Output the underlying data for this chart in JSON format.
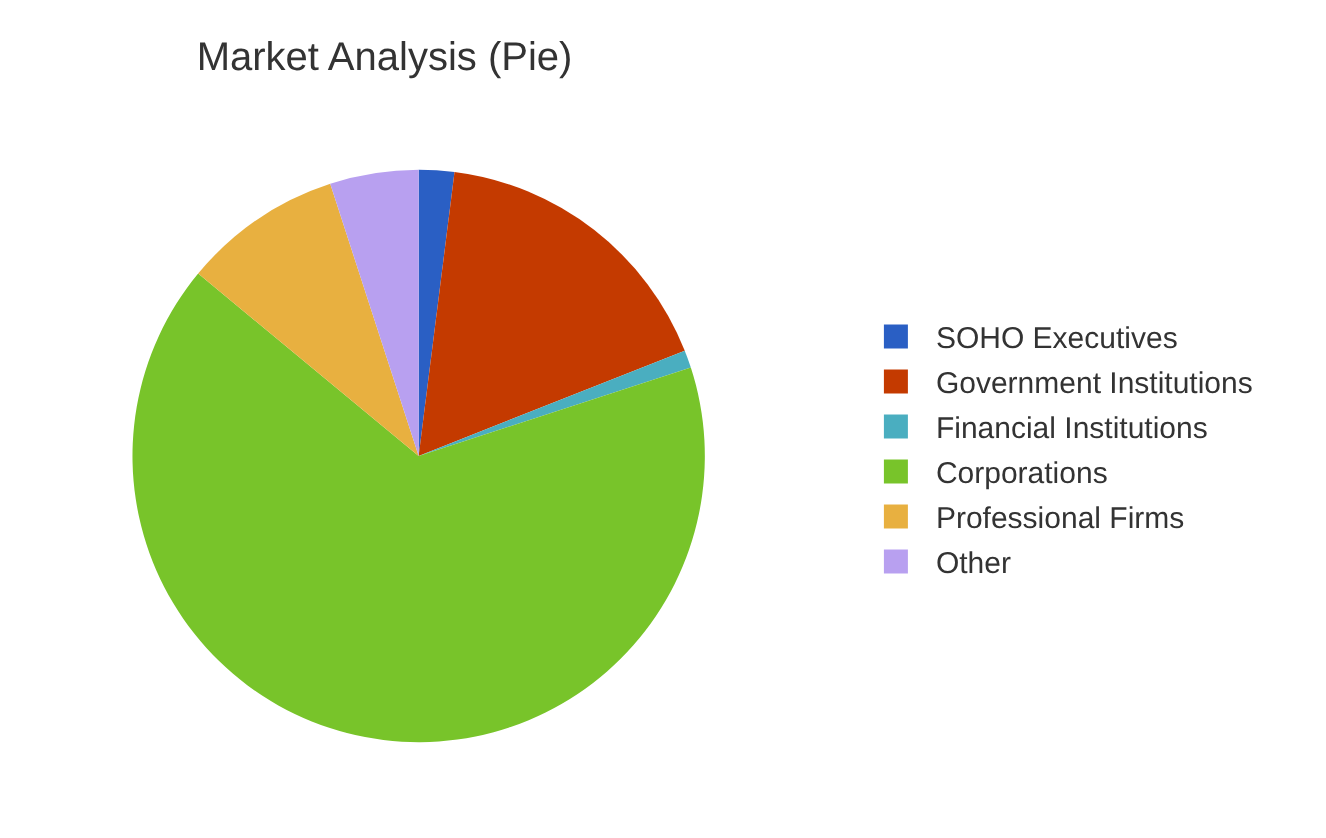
{
  "chart_data": {
    "type": "pie",
    "title": "Market Analysis (Pie)",
    "categories": [
      "SOHO Executives",
      "Government Institutions",
      "Financial Institutions",
      "Corporations",
      "Professional Firms",
      "Other"
    ],
    "values": [
      2,
      17,
      1,
      66,
      9,
      5
    ],
    "colors": [
      "#2a5fc4",
      "#c43a00",
      "#4aaec0",
      "#78c42a",
      "#e8b040",
      "#b8a0f0"
    ],
    "legend": "right"
  }
}
